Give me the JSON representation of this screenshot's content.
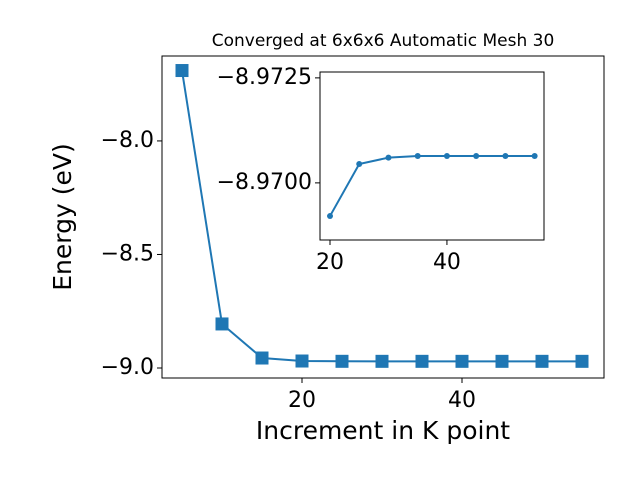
{
  "chart_data": [
    {
      "type": "line",
      "title": "Converged at 6x6x6 Automatic Mesh 30",
      "xlabel": "Increment in K point",
      "ylabel": "Energy (eV)",
      "x": [
        5,
        10,
        15,
        20,
        25,
        30,
        35,
        40,
        45,
        50,
        55
      ],
      "series": [
        {
          "color": "#1f77b4",
          "marker": "square",
          "values": [
            -7.69,
            -8.806,
            -8.956,
            -8.9692,
            -8.9705,
            -8.9706,
            -8.9706,
            -8.9706,
            -8.9706,
            -8.9706,
            -8.9706
          ]
        }
      ],
      "xlim": [
        2.5,
        57.75
      ],
      "ylim": [
        -9.044,
        -7.626
      ],
      "xticks": [
        20,
        40
      ],
      "yticks": [
        {
          "value": -9.0,
          "label": "−9.0"
        },
        {
          "value": -8.5,
          "label": "−8.5"
        },
        {
          "value": -8.0,
          "label": "−8.0"
        }
      ]
    },
    {
      "type": "line",
      "x": [
        20,
        25,
        30,
        35,
        40,
        45,
        50,
        55
      ],
      "series": [
        {
          "color": "#1f77b4",
          "marker": "circle",
          "values": [
            -8.96921,
            -8.97045,
            -8.9706,
            -8.97064,
            -8.97064,
            -8.97064,
            -8.97064,
            -8.97064
          ]
        }
      ],
      "xlim": [
        18.29,
        56.6
      ],
      "ylim": [
        -8.96864,
        -8.97264
      ],
      "xticks": [
        20,
        40
      ],
      "yticks": [
        {
          "value": -8.97,
          "label": "−8.9700"
        },
        {
          "value": -8.9725,
          "label": "−8.9725"
        }
      ]
    }
  ]
}
